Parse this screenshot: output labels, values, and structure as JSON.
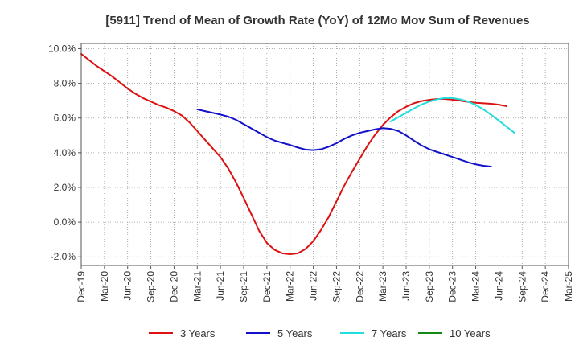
{
  "chart_data": {
    "type": "line",
    "title": "[5911]  Trend of Mean of Growth Rate (YoY) of 12Mo Mov Sum of Revenues",
    "xlabel": "",
    "ylabel": "",
    "grid": true,
    "legend_position": "bottom",
    "ylim": [
      -2.5,
      10.3
    ],
    "y_ticks": [
      10.0,
      8.0,
      6.0,
      4.0,
      2.0,
      0.0,
      -2.0
    ],
    "y_tick_labels": [
      "10.0%",
      "8.0%",
      "6.0%",
      "4.0%",
      "2.0%",
      "0.0%",
      "-2.0%"
    ],
    "x_tick_labels": [
      "Dec-19",
      "Mar-20",
      "Jun-20",
      "Sep-20",
      "Dec-20",
      "Mar-21",
      "Jun-21",
      "Sep-21",
      "Dec-21",
      "Mar-22",
      "Jun-22",
      "Sep-22",
      "Dec-22",
      "Mar-23",
      "Jun-23",
      "Sep-23",
      "Dec-23",
      "Mar-24",
      "Jun-24",
      "Sep-24",
      "Dec-24",
      "Mar-25"
    ],
    "x_start": "Dec-19",
    "x_unit": "months since Dec-19",
    "series": [
      {
        "name": "3 Years",
        "color": "#dd1111",
        "start": 0,
        "values": [
          9.7,
          9.35,
          9.0,
          8.7,
          8.4,
          8.05,
          7.7,
          7.4,
          7.15,
          6.95,
          6.75,
          6.6,
          6.4,
          6.15,
          5.75,
          5.25,
          4.75,
          4.25,
          3.75,
          3.1,
          2.3,
          1.4,
          0.45,
          -0.5,
          -1.2,
          -1.6,
          -1.8,
          -1.85,
          -1.8,
          -1.55,
          -1.1,
          -0.45,
          0.3,
          1.2,
          2.1,
          2.9,
          3.65,
          4.4,
          5.05,
          5.6,
          6.05,
          6.4,
          6.65,
          6.85,
          6.98,
          7.05,
          7.1,
          7.1,
          7.06,
          7.0,
          6.93,
          6.88,
          6.85,
          6.82,
          6.77,
          6.68
        ]
      },
      {
        "name": "5 Years",
        "color": "#1111cc",
        "start": 15,
        "values": [
          6.5,
          6.4,
          6.3,
          6.2,
          6.08,
          5.9,
          5.65,
          5.4,
          5.15,
          4.9,
          4.7,
          4.57,
          4.45,
          4.3,
          4.18,
          4.15,
          4.2,
          4.35,
          4.55,
          4.8,
          5.0,
          5.15,
          5.25,
          5.35,
          5.42,
          5.38,
          5.25,
          5.0,
          4.7,
          4.42,
          4.2,
          4.05,
          3.9,
          3.75,
          3.6,
          3.45,
          3.33,
          3.25,
          3.2
        ]
      },
      {
        "name": "7 Years",
        "color": "#22dddd",
        "start": 40,
        "values": [
          5.8,
          6.05,
          6.3,
          6.55,
          6.78,
          6.95,
          7.08,
          7.15,
          7.15,
          7.08,
          6.95,
          6.75,
          6.5,
          6.18,
          5.85,
          5.5,
          5.15
        ]
      },
      {
        "name": "10 Years",
        "color": "#118811",
        "start": 0,
        "values": []
      }
    ]
  }
}
